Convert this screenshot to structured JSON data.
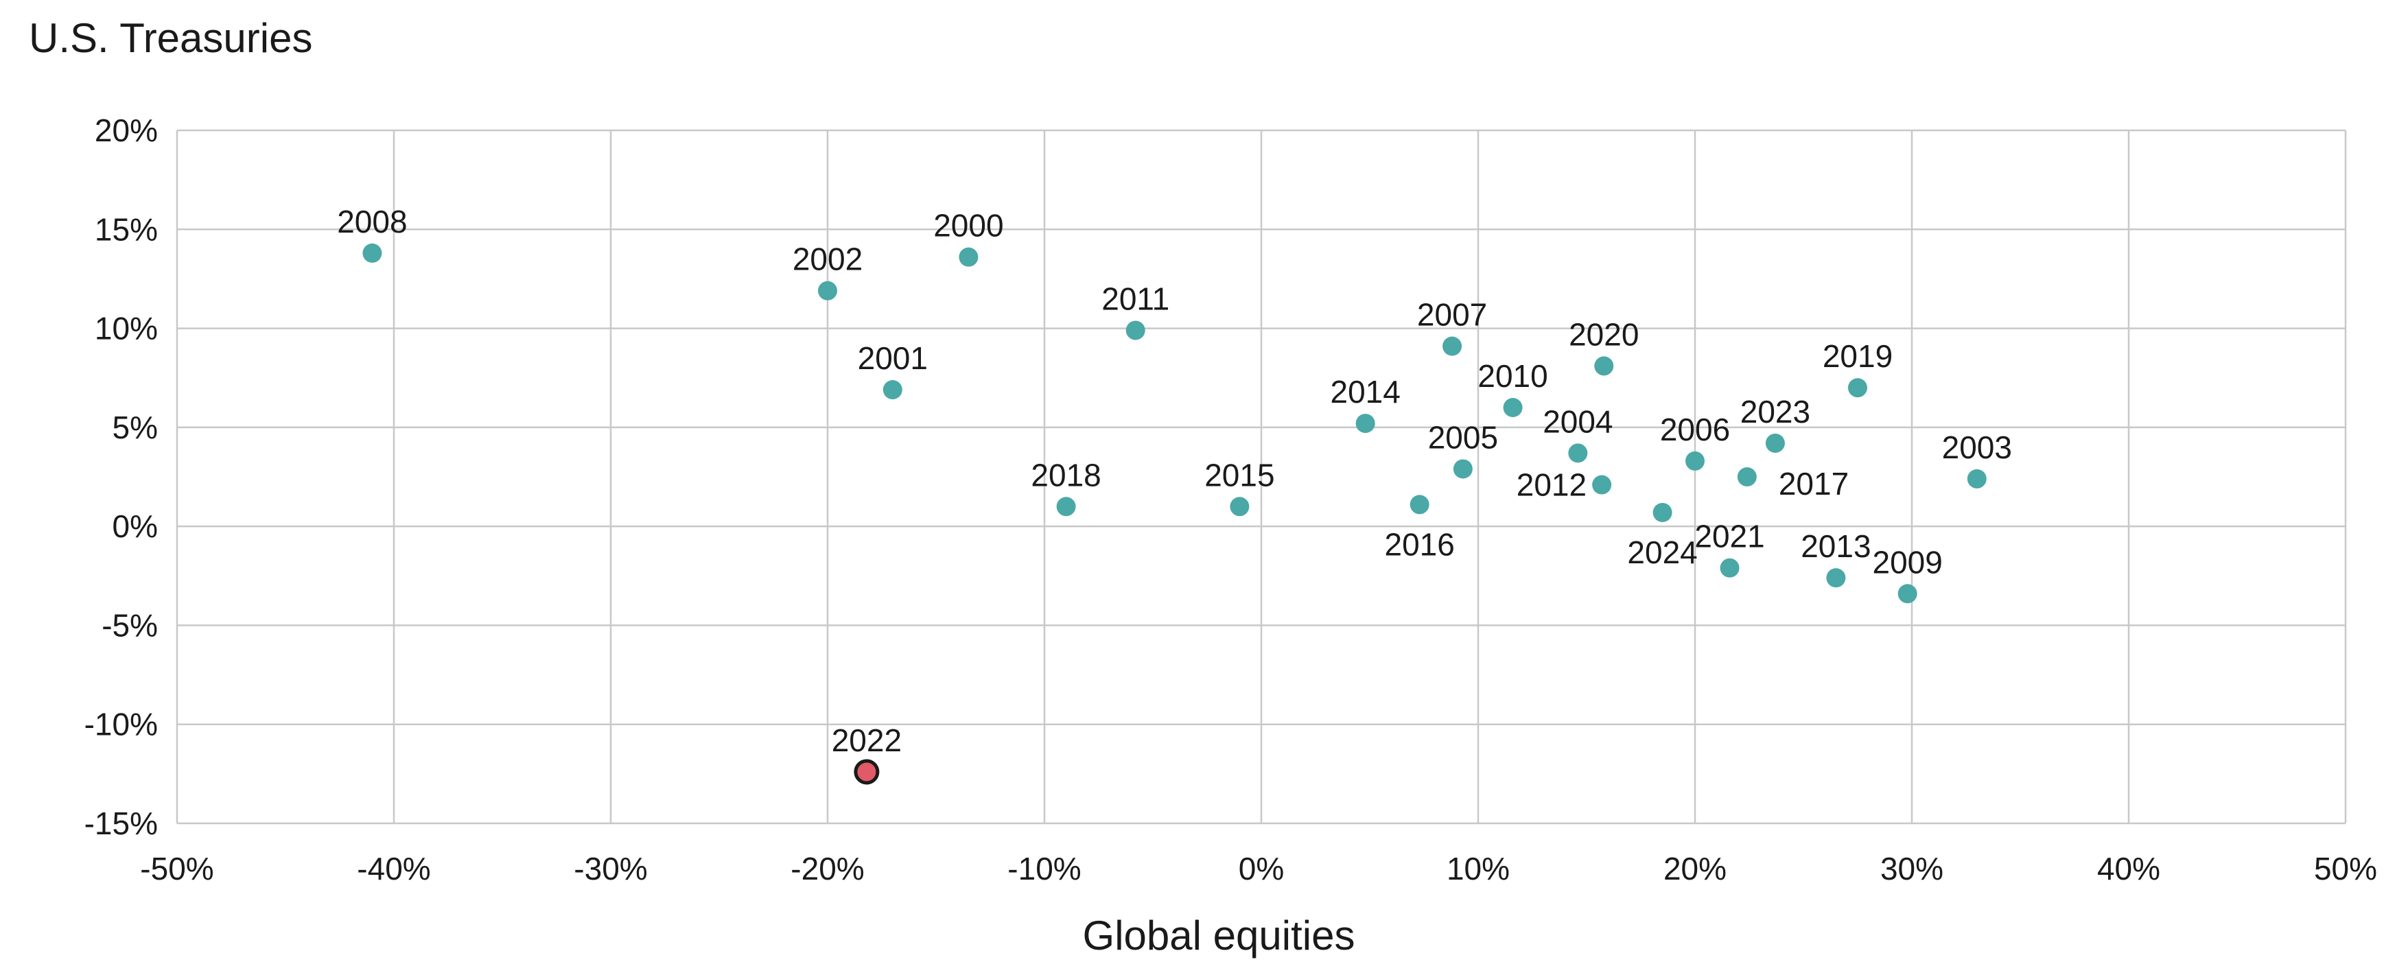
{
  "chart_data": {
    "type": "scatter",
    "ylabel": "U.S. Treasuries",
    "xlabel": "Global equities",
    "xlim": [
      -50,
      50
    ],
    "ylim": [
      -15,
      20
    ],
    "x_ticks": [
      -50,
      -40,
      -30,
      -20,
      -10,
      0,
      10,
      20,
      30,
      40,
      50
    ],
    "y_ticks": [
      -15,
      -10,
      -5,
      0,
      5,
      10,
      15,
      20
    ],
    "x_tick_labels": [
      "-50%",
      "-40%",
      "-30%",
      "-20%",
      "-10%",
      "0%",
      "10%",
      "20%",
      "30%",
      "40%",
      "50%"
    ],
    "y_tick_labels": [
      "-15%",
      "-10%",
      "-5%",
      "0%",
      "5%",
      "10%",
      "15%",
      "20%"
    ],
    "grid": true,
    "colors": {
      "point": "#4aa8a7",
      "highlight": "#e05a67",
      "highlight_stroke": "#1a1a1a",
      "grid": "#c8c8c8",
      "text": "#1a1a1a"
    },
    "points": [
      {
        "label": "2008",
        "x": -41.0,
        "y": 13.8,
        "label_pos": "above"
      },
      {
        "label": "2002",
        "x": -20.0,
        "y": 11.9,
        "label_pos": "above"
      },
      {
        "label": "2000",
        "x": -13.5,
        "y": 13.6,
        "label_pos": "above"
      },
      {
        "label": "2001",
        "x": -17.0,
        "y": 6.9,
        "label_pos": "above"
      },
      {
        "label": "2011",
        "x": -5.8,
        "y": 9.9,
        "label_pos": "above"
      },
      {
        "label": "2018",
        "x": -9.0,
        "y": 1.0,
        "label_pos": "above"
      },
      {
        "label": "2015",
        "x": -1.0,
        "y": 1.0,
        "label_pos": "above"
      },
      {
        "label": "2014",
        "x": 4.8,
        "y": 5.2,
        "label_pos": "above"
      },
      {
        "label": "2007",
        "x": 8.8,
        "y": 9.1,
        "label_pos": "above"
      },
      {
        "label": "2010",
        "x": 11.6,
        "y": 6.0,
        "label_pos": "above"
      },
      {
        "label": "2005",
        "x": 9.3,
        "y": 2.9,
        "label_pos": "above"
      },
      {
        "label": "2016",
        "x": 7.3,
        "y": 1.1,
        "label_pos": "below"
      },
      {
        "label": "2020",
        "x": 15.8,
        "y": 8.1,
        "label_pos": "above"
      },
      {
        "label": "2004",
        "x": 14.6,
        "y": 3.7,
        "label_pos": "above"
      },
      {
        "label": "2012",
        "x": 15.7,
        "y": 2.1,
        "label_pos": "left"
      },
      {
        "label": "2024",
        "x": 18.5,
        "y": 0.7,
        "label_pos": "below"
      },
      {
        "label": "2006",
        "x": 20.0,
        "y": 3.3,
        "label_pos": "above"
      },
      {
        "label": "2023",
        "x": 23.7,
        "y": 4.2,
        "label_pos": "above"
      },
      {
        "label": "2017",
        "x": 22.4,
        "y": 2.5,
        "label_pos": "right"
      },
      {
        "label": "2019",
        "x": 27.5,
        "y": 7.0,
        "label_pos": "above"
      },
      {
        "label": "2003",
        "x": 33.0,
        "y": 2.4,
        "label_pos": "above"
      },
      {
        "label": "2021",
        "x": 21.6,
        "y": -2.1,
        "label_pos": "above"
      },
      {
        "label": "2013",
        "x": 26.5,
        "y": -2.6,
        "label_pos": "above"
      },
      {
        "label": "2009",
        "x": 29.8,
        "y": -3.4,
        "label_pos": "above"
      },
      {
        "label": "2022",
        "x": -18.2,
        "y": -12.4,
        "label_pos": "above",
        "highlight": true
      }
    ]
  }
}
